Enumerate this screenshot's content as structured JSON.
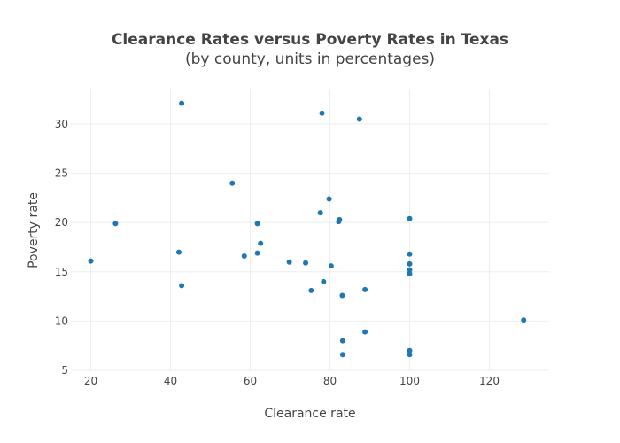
{
  "chart_data": {
    "type": "scatter",
    "title": "Clearance Rates versus Poverty Rates in Texas",
    "subtitle": "(by county, units in percentages)",
    "xlabel": "Clearance rate",
    "ylabel": "Poverty rate",
    "xlim": [
      15,
      135
    ],
    "ylim": [
      5,
      33.6
    ],
    "x_ticks": [
      20,
      40,
      60,
      80,
      100,
      120
    ],
    "y_ticks": [
      5,
      10,
      15,
      20,
      25,
      30
    ],
    "grid": true,
    "legend": "none",
    "marker_color": "#1f77b4",
    "points": [
      {
        "x": 20.0,
        "y": 16.1
      },
      {
        "x": 26.2,
        "y": 19.9
      },
      {
        "x": 42.1,
        "y": 17.0
      },
      {
        "x": 42.8,
        "y": 32.1
      },
      {
        "x": 42.8,
        "y": 13.6
      },
      {
        "x": 55.5,
        "y": 24.0
      },
      {
        "x": 58.5,
        "y": 16.6
      },
      {
        "x": 61.8,
        "y": 19.9
      },
      {
        "x": 61.8,
        "y": 16.9
      },
      {
        "x": 62.6,
        "y": 17.9
      },
      {
        "x": 69.8,
        "y": 16.0
      },
      {
        "x": 73.9,
        "y": 15.9
      },
      {
        "x": 75.3,
        "y": 13.1
      },
      {
        "x": 77.6,
        "y": 21.0
      },
      {
        "x": 78.0,
        "y": 31.1
      },
      {
        "x": 78.4,
        "y": 14.0
      },
      {
        "x": 79.8,
        "y": 22.4
      },
      {
        "x": 80.3,
        "y": 15.6
      },
      {
        "x": 82.2,
        "y": 20.1
      },
      {
        "x": 82.4,
        "y": 20.3
      },
      {
        "x": 83.1,
        "y": 12.6
      },
      {
        "x": 83.2,
        "y": 8.0
      },
      {
        "x": 83.2,
        "y": 6.6
      },
      {
        "x": 87.4,
        "y": 30.5
      },
      {
        "x": 88.8,
        "y": 13.2
      },
      {
        "x": 88.8,
        "y": 8.9
      },
      {
        "x": 100.0,
        "y": 20.4
      },
      {
        "x": 100.0,
        "y": 16.8
      },
      {
        "x": 100.0,
        "y": 15.8
      },
      {
        "x": 100.0,
        "y": 15.2
      },
      {
        "x": 100.0,
        "y": 14.8
      },
      {
        "x": 100.0,
        "y": 7.0
      },
      {
        "x": 100.0,
        "y": 6.6
      },
      {
        "x": 128.6,
        "y": 10.1
      }
    ]
  }
}
